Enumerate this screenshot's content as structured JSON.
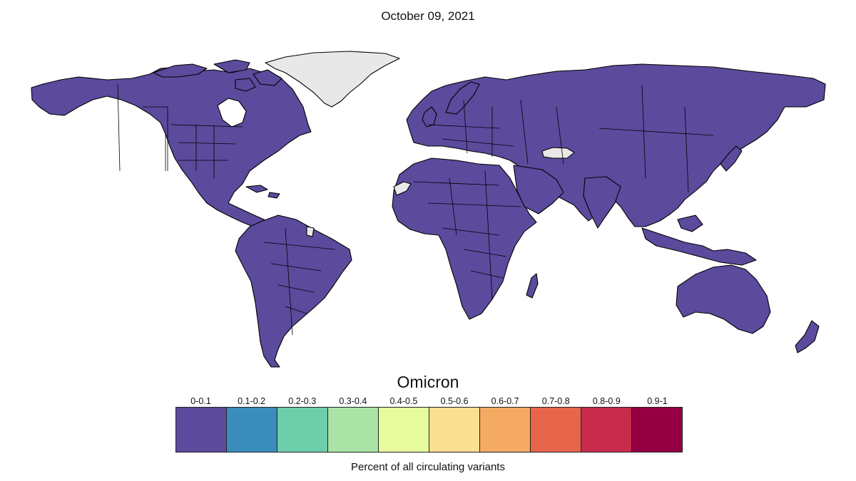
{
  "title": "October 09, 2021",
  "variant": "Omicron",
  "caption": "Percent of all circulating variants",
  "colors": {
    "has_data": "#5c4a9d",
    "no_data": "#e8e8e8",
    "border": "#000000"
  },
  "legend": [
    {
      "label": "0-0.1",
      "color": "#5c4a9d"
    },
    {
      "label": "0.1-0.2",
      "color": "#3a8cbb"
    },
    {
      "label": "0.2-0.3",
      "color": "#6cceaa"
    },
    {
      "label": "0.3-0.4",
      "color": "#aae3a6"
    },
    {
      "label": "0.4-0.5",
      "color": "#e7fa9c"
    },
    {
      "label": "0.5-0.6",
      "color": "#fadf92"
    },
    {
      "label": "0.6-0.7",
      "color": "#f5aa63"
    },
    {
      "label": "0.7-0.8",
      "color": "#e8644b"
    },
    {
      "label": "0.8-0.9",
      "color": "#c72c4c"
    },
    {
      "label": "0.9-1",
      "color": "#950042"
    }
  ],
  "map": {
    "countries_with_data_bin": "0-0.1",
    "countries_without_data": [
      "Greenland",
      "Turkey",
      "Western Sahara",
      "French Guiana"
    ]
  }
}
